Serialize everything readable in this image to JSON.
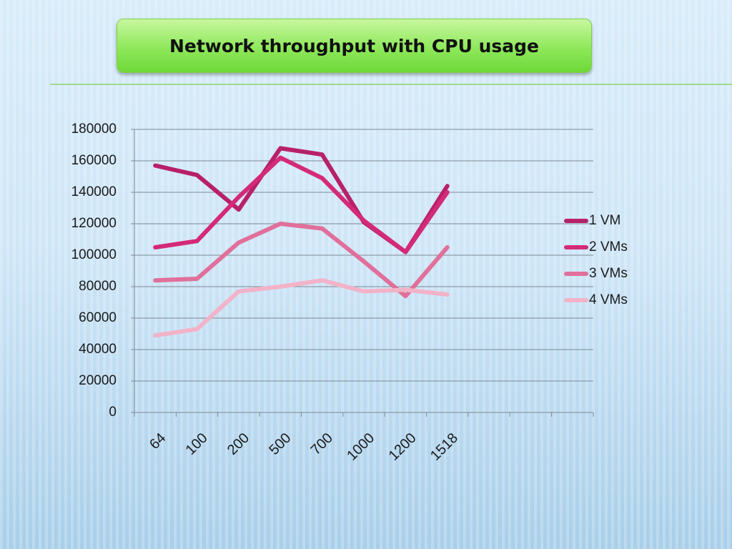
{
  "chart_data": {
    "type": "line",
    "title": "Network throughput with CPU usage",
    "categories": [
      "64",
      "100",
      "200",
      "500",
      "700",
      "1000",
      "1200",
      "1518",
      null,
      null,
      null
    ],
    "series": [
      {
        "name": "1 VM",
        "color": "#b8206a",
        "values": [
          157000,
          151000,
          129000,
          168000,
          164000,
          121000,
          102000,
          144000,
          null,
          null,
          null
        ]
      },
      {
        "name": "2 VMs",
        "color": "#d42a78",
        "values": [
          105000,
          109000,
          137000,
          162000,
          149000,
          122000,
          102000,
          140000,
          null,
          null,
          null
        ]
      },
      {
        "name": "3 VMs",
        "color": "#e0709a",
        "values": [
          84000,
          85000,
          108000,
          120000,
          117000,
          96000,
          74000,
          105000,
          null,
          null,
          null
        ]
      },
      {
        "name": "4 VMs",
        "color": "#f2b3c8",
        "values": [
          49000,
          53000,
          77000,
          80000,
          84000,
          77000,
          78000,
          75000,
          null,
          null,
          null
        ]
      }
    ],
    "ylim": [
      0,
      180000
    ],
    "yticks": [
      0,
      20000,
      40000,
      60000,
      80000,
      100000,
      120000,
      140000,
      160000,
      180000
    ],
    "grid": true,
    "legend": "right"
  }
}
